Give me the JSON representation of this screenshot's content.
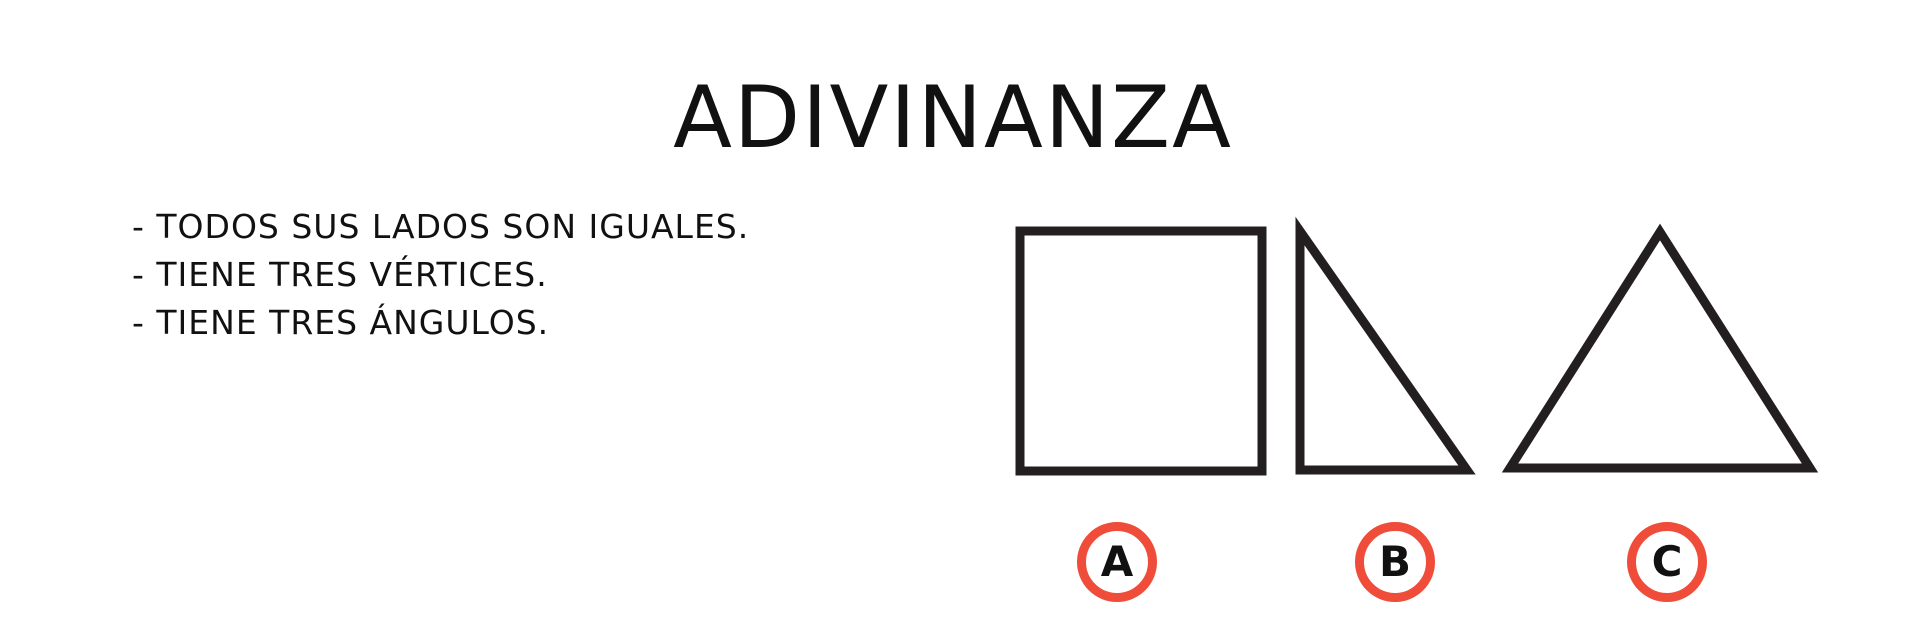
{
  "title": "ADIVINANZA",
  "clues": [
    "- TODOS SUS LADOS SON IGUALES.",
    "- TIENE TRES VÉRTICES.",
    "- TIENE TRES ÁNGULOS."
  ],
  "shapes": [
    {
      "name": "square",
      "icon": "square-icon"
    },
    {
      "name": "right-triangle",
      "icon": "right-triangle-icon"
    },
    {
      "name": "equilateral-triangle",
      "icon": "equilateral-triangle-icon"
    }
  ],
  "options": [
    {
      "letter": "A"
    },
    {
      "letter": "B"
    },
    {
      "letter": "C"
    }
  ],
  "colors": {
    "shape_stroke": "#231f20",
    "option_ring": "#ef4c3a",
    "text": "#111111"
  }
}
